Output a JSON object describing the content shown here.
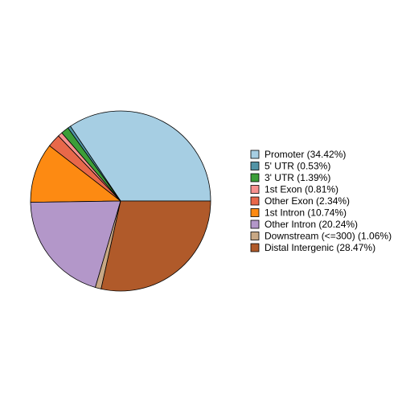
{
  "chart_data": {
    "type": "pie",
    "categories": [
      "Promoter (34.42%)",
      "5' UTR (0.53%)",
      "3' UTR (1.39%)",
      "1st Exon (0.81%)",
      "Other Exon (2.34%)",
      "1st Intron (10.74%)",
      "Other Intron (20.24%)",
      "Downstream (<=300) (1.06%)",
      "Distal Intergenic (28.47%)"
    ],
    "values": [
      34.42,
      0.53,
      1.39,
      0.81,
      2.34,
      10.74,
      20.24,
      1.06,
      28.47
    ],
    "colors": [
      "#a6cee3",
      "#5294a6",
      "#3c9e38",
      "#f7918f",
      "#e8684a",
      "#fd8a12",
      "#b397c9",
      "#c8a885",
      "#b05a2a"
    ],
    "legend": "right"
  }
}
